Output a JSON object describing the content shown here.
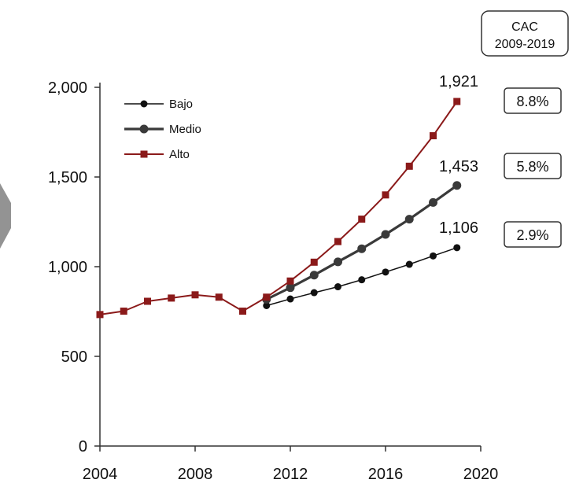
{
  "chart_data": {
    "type": "line",
    "x": [
      2004,
      2005,
      2006,
      2007,
      2008,
      2009,
      2010,
      2011,
      2012,
      2013,
      2014,
      2015,
      2016,
      2017,
      2018,
      2019
    ],
    "xlim": [
      2004,
      2020
    ],
    "x_ticks": [
      "2004",
      "2008",
      "2012",
      "2016",
      "2020"
    ],
    "ylim": [
      0,
      2000
    ],
    "y_ticks": [
      "0",
      "500",
      "1,000",
      "1,500",
      "2,000"
    ],
    "series": [
      {
        "name": "Bajo",
        "color": "#111111",
        "marker": "circle",
        "values": [
          null,
          null,
          null,
          null,
          null,
          null,
          null,
          783,
          820,
          855,
          888,
          927,
          970,
          1013,
          1060,
          1106
        ]
      },
      {
        "name": "Medio",
        "color": "#3a3a3a",
        "marker": "circle",
        "values": [
          null,
          null,
          null,
          null,
          null,
          null,
          null,
          818,
          883,
          953,
          1027,
          1100,
          1180,
          1265,
          1358,
          1453
        ]
      },
      {
        "name": "Alto",
        "color": "#8b1a1a",
        "marker": "square",
        "values": [
          733,
          752,
          807,
          825,
          843,
          830,
          752,
          830,
          920,
          1025,
          1140,
          1265,
          1400,
          1560,
          1730,
          1921
        ]
      }
    ],
    "end_labels": [
      "1,921",
      "1,453",
      "1,106"
    ],
    "cac_header": [
      "CAC",
      "2009-2019"
    ],
    "cagr_values": [
      "8.8%",
      "5.8%",
      "2.9%"
    ],
    "grid": false,
    "legend_position": "top-left"
  },
  "colors": {
    "bajo": "#111111",
    "medio": "#3a3a3a",
    "alto": "#8b1a1a",
    "axis": "#333333",
    "side_arrow": "#808080"
  }
}
